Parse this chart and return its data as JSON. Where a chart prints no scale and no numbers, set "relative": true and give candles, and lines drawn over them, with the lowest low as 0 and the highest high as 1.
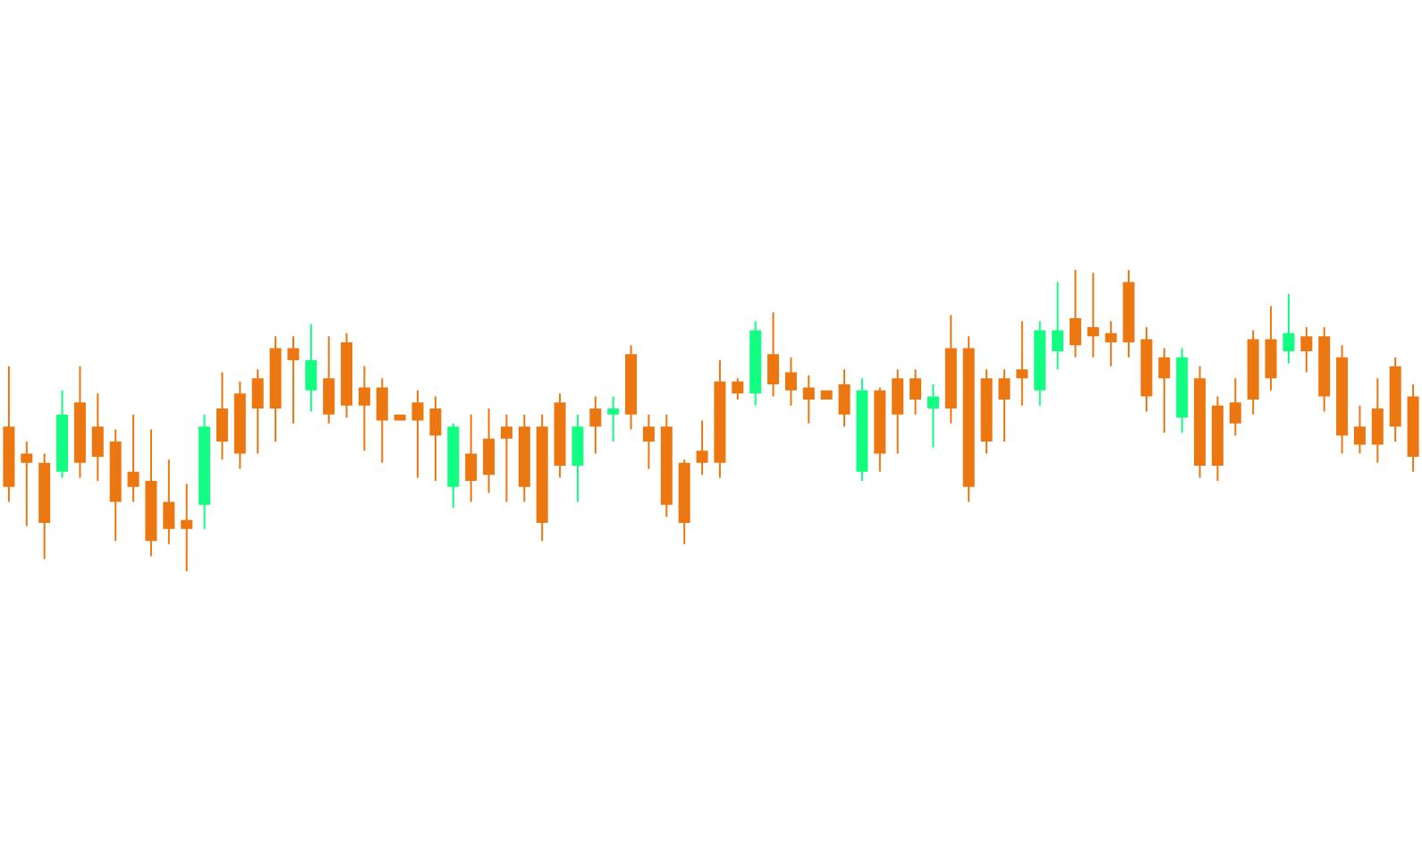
{
  "chart_data": {
    "type": "candlestick",
    "relative": true,
    "categories": [
      null,
      null,
      null,
      null,
      null,
      null,
      null,
      null,
      null,
      null,
      null,
      null,
      null,
      null,
      null,
      null,
      null,
      null,
      null,
      null,
      null,
      null,
      null,
      null,
      null,
      null,
      null,
      null,
      null,
      null,
      null,
      null,
      null,
      null,
      null,
      null,
      null,
      null,
      null,
      null,
      null,
      null,
      null,
      null,
      null,
      null,
      null,
      null,
      null,
      null,
      null,
      null,
      null,
      null,
      null,
      null,
      null,
      null,
      null,
      null,
      null,
      null,
      null,
      null,
      null,
      null,
      null,
      null,
      null,
      null,
      null,
      null,
      null,
      null,
      null,
      null,
      null,
      null,
      null,
      null
    ],
    "ohlc": [
      [
        0.48,
        0.68,
        0.23,
        0.28
      ],
      [
        0.39,
        0.43,
        0.15,
        0.36
      ],
      [
        0.36,
        0.39,
        0.04,
        0.16
      ],
      [
        0.33,
        0.6,
        0.31,
        0.52
      ],
      [
        0.56,
        0.68,
        0.31,
        0.36
      ],
      [
        0.48,
        0.59,
        0.3,
        0.38
      ],
      [
        0.43,
        0.47,
        0.1,
        0.23
      ],
      [
        0.33,
        0.52,
        0.23,
        0.28
      ],
      [
        0.3,
        0.47,
        0.05,
        0.1
      ],
      [
        0.23,
        0.37,
        0.09,
        0.14
      ],
      [
        0.17,
        0.29,
        0,
        0.14
      ],
      [
        0.22,
        0.52,
        0.14,
        0.48
      ],
      [
        0.54,
        0.66,
        0.37,
        0.43
      ],
      [
        0.59,
        0.63,
        0.34,
        0.39
      ],
      [
        0.64,
        0.67,
        0.39,
        0.54
      ],
      [
        0.74,
        0.78,
        0.43,
        0.54
      ],
      [
        0.74,
        0.78,
        0.49,
        0.7
      ],
      [
        0.6,
        0.82,
        0.53,
        0.7
      ],
      [
        0.64,
        0.78,
        0.49,
        0.52
      ],
      [
        0.76,
        0.79,
        0.51,
        0.55
      ],
      [
        0.61,
        0.68,
        0.4,
        0.55
      ],
      [
        0.61,
        0.64,
        0.36,
        0.5
      ],
      [
        0.52,
        0.52,
        0.5,
        0.5
      ],
      [
        0.56,
        0.6,
        0.31,
        0.5
      ],
      [
        0.54,
        0.58,
        0.3,
        0.45
      ],
      [
        0.28,
        0.49,
        0.21,
        0.48
      ],
      [
        0.39,
        0.52,
        0.23,
        0.3
      ],
      [
        0.44,
        0.54,
        0.26,
        0.32
      ],
      [
        0.48,
        0.52,
        0.23,
        0.44
      ],
      [
        0.48,
        0.52,
        0.23,
        0.28
      ],
      [
        0.48,
        0.52,
        0.1,
        0.16
      ],
      [
        0.56,
        0.59,
        0.31,
        0.35
      ],
      [
        0.35,
        0.52,
        0.23,
        0.48
      ],
      [
        0.54,
        0.58,
        0.39,
        0.48
      ],
      [
        0.52,
        0.58,
        0.43,
        0.54
      ],
      [
        0.72,
        0.75,
        0.47,
        0.52
      ],
      [
        0.48,
        0.52,
        0.34,
        0.43
      ],
      [
        0.48,
        0.52,
        0.18,
        0.22
      ],
      [
        0.36,
        0.37,
        0.09,
        0.16
      ],
      [
        0.4,
        0.5,
        0.32,
        0.36
      ],
      [
        0.63,
        0.7,
        0.31,
        0.36
      ],
      [
        0.63,
        0.64,
        0.57,
        0.59
      ],
      [
        0.59,
        0.83,
        0.55,
        0.8
      ],
      [
        0.72,
        0.86,
        0.58,
        0.62
      ],
      [
        0.66,
        0.71,
        0.55,
        0.6
      ],
      [
        0.61,
        0.65,
        0.49,
        0.57
      ],
      [
        0.6,
        0.6,
        0.57,
        0.57
      ],
      [
        0.62,
        0.67,
        0.48,
        0.52
      ],
      [
        0.33,
        0.64,
        0.3,
        0.6
      ],
      [
        0.6,
        0.61,
        0.33,
        0.39
      ],
      [
        0.64,
        0.67,
        0.39,
        0.52
      ],
      [
        0.64,
        0.67,
        0.52,
        0.57
      ],
      [
        0.54,
        0.62,
        0.41,
        0.58
      ],
      [
        0.74,
        0.85,
        0.49,
        0.54
      ],
      [
        0.74,
        0.78,
        0.23,
        0.28
      ],
      [
        0.64,
        0.67,
        0.39,
        0.43
      ],
      [
        0.64,
        0.67,
        0.43,
        0.57
      ],
      [
        0.67,
        0.83,
        0.55,
        0.64
      ],
      [
        0.6,
        0.83,
        0.55,
        0.8
      ],
      [
        0.73,
        0.96,
        0.67,
        0.8
      ],
      [
        0.84,
        1,
        0.71,
        0.75
      ],
      [
        0.81,
        0.99,
        0.71,
        0.78
      ],
      [
        0.79,
        0.83,
        0.68,
        0.76
      ],
      [
        0.96,
        1,
        0.71,
        0.76
      ],
      [
        0.77,
        0.81,
        0.53,
        0.58
      ],
      [
        0.71,
        0.74,
        0.46,
        0.64
      ],
      [
        0.51,
        0.74,
        0.46,
        0.71
      ],
      [
        0.64,
        0.68,
        0.31,
        0.35
      ],
      [
        0.55,
        0.58,
        0.3,
        0.35
      ],
      [
        0.56,
        0.64,
        0.45,
        0.49
      ],
      [
        0.77,
        0.8,
        0.52,
        0.57
      ],
      [
        0.77,
        0.88,
        0.6,
        0.64
      ],
      [
        0.73,
        0.92,
        0.69,
        0.79
      ],
      [
        0.78,
        0.81,
        0.66,
        0.73
      ],
      [
        0.78,
        0.81,
        0.53,
        0.58
      ],
      [
        0.71,
        0.75,
        0.39,
        0.45
      ],
      [
        0.48,
        0.55,
        0.39,
        0.42
      ],
      [
        0.54,
        0.64,
        0.36,
        0.42
      ],
      [
        0.68,
        0.71,
        0.43,
        0.48
      ],
      [
        0.58,
        0.62,
        0.33,
        0.38
      ]
    ],
    "colors": [
      "#ec7711",
      "#ec7711",
      "#ec7711",
      "#12fe82",
      "#ec7711",
      "#ec7711",
      "#ec7711",
      "#ec7711",
      "#ec7711",
      "#ec7711",
      "#ec7711",
      "#12fe82",
      "#ec7711",
      "#ec7711",
      "#ec7711",
      "#ec7711",
      "#ec7711",
      "#12fe82",
      "#ec7711",
      "#ec7711",
      "#ec7711",
      "#ec7711",
      "#ec7711",
      "#ec7711",
      "#ec7711",
      "#12fe82",
      "#ec7711",
      "#ec7711",
      "#ec7711",
      "#ec7711",
      "#ec7711",
      "#ec7711",
      "#12fe82",
      "#ec7711",
      "#12fe82",
      "#ec7711",
      "#ec7711",
      "#ec7711",
      "#ec7711",
      "#ec7711",
      "#ec7711",
      "#ec7711",
      "#12fe82",
      "#ec7711",
      "#ec7711",
      "#ec7711",
      "#ec7711",
      "#ec7711",
      "#12fe82",
      "#ec7711",
      "#ec7711",
      "#ec7711",
      "#12fe82",
      "#ec7711",
      "#ec7711",
      "#ec7711",
      "#ec7711",
      "#ec7711",
      "#12fe82",
      "#12fe82",
      "#ec7711",
      "#ec7711",
      "#ec7711",
      "#ec7711",
      "#ec7711",
      "#ec7711",
      "#12fe82",
      "#ec7711",
      "#ec7711",
      "#ec7711",
      "#ec7711",
      "#ec7711",
      "#12fe82",
      "#ec7711",
      "#ec7711",
      "#ec7711",
      "#ec7711",
      "#ec7711",
      "#ec7711",
      "#ec7711"
    ]
  }
}
